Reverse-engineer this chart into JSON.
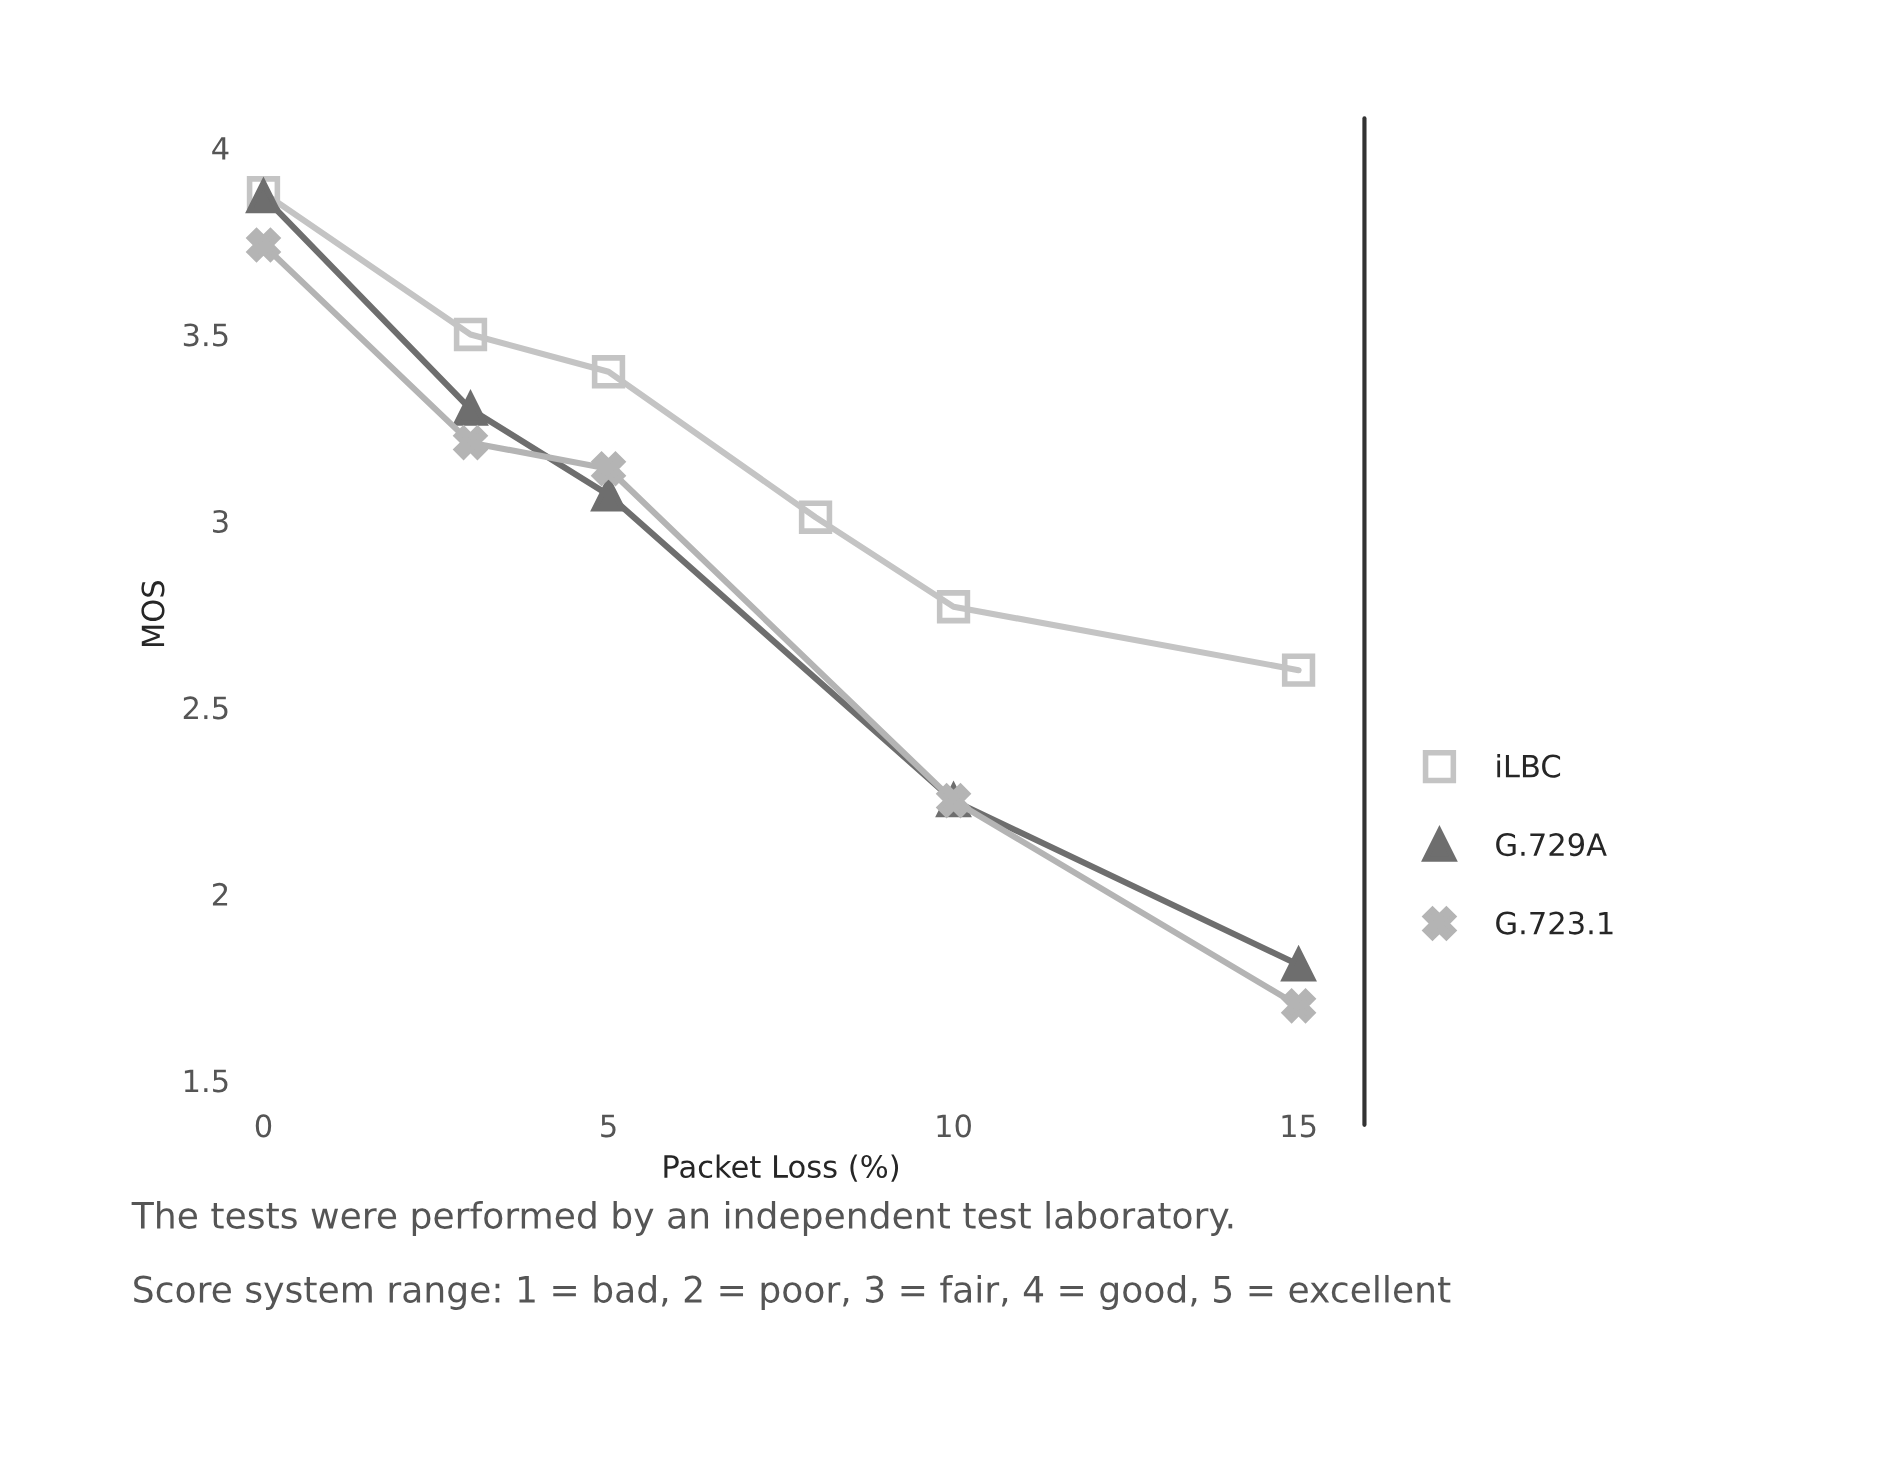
{
  "chart_data": {
    "type": "line",
    "xlabel": "Packet Loss (%)",
    "ylabel": "MOS",
    "xlim": [
      0,
      15
    ],
    "ylim": [
      1.5,
      4
    ],
    "xticks": [
      0,
      5,
      10,
      15
    ],
    "yticks": [
      1.5,
      2,
      2.5,
      3,
      3.5,
      4
    ],
    "grid": false,
    "legend": "right",
    "series": [
      {
        "name": "iLBC",
        "color": "#c4c4c4",
        "marker": "square",
        "x": [
          0,
          3,
          5,
          8,
          10,
          15
        ],
        "values": [
          3.88,
          3.5,
          3.4,
          3.01,
          2.77,
          2.6
        ]
      },
      {
        "name": "G.729A",
        "color": "#6e6e6e",
        "marker": "triangle",
        "x": [
          0,
          3,
          5,
          10,
          15
        ],
        "values": [
          3.87,
          3.3,
          3.07,
          2.25,
          1.81
        ]
      },
      {
        "name": "G.723.1",
        "color": "#b4b4b4",
        "marker": "cross",
        "x": [
          0,
          3,
          5,
          10,
          15
        ],
        "values": [
          3.74,
          3.21,
          3.14,
          2.25,
          1.7
        ]
      }
    ],
    "annotations": [
      "The tests were performed by an independent test laboratory.",
      "Score system range: 1 = bad, 2 = poor, 3 = fair, 4 = good, 5 = excellent"
    ]
  }
}
